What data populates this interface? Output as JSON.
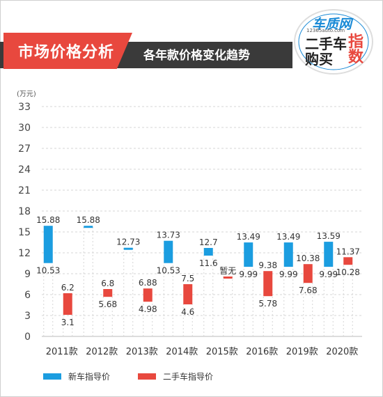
{
  "header": {
    "title": "市场价格分析",
    "subtitle": "各年款价格变化趋势",
    "logo_top": "车质网",
    "logo_url": "12365auto.com",
    "logo_line1": "二手车",
    "logo_line2": "购买",
    "logo_big1": "指",
    "logo_big2": "数"
  },
  "chart_data": {
    "type": "bar",
    "unit_label": "(万元)",
    "ylim": [
      0,
      33
    ],
    "yticks": [
      0,
      3,
      6,
      9,
      12,
      15,
      18,
      21,
      24,
      27,
      30,
      33
    ],
    "categories": [
      "2011款",
      "2012款",
      "2013款",
      "2014款",
      "2015款",
      "2016款",
      "2019款",
      "2020款"
    ],
    "series": [
      {
        "name": "新车指导价",
        "color": "#1b9de0",
        "high": [
          15.88,
          15.88,
          12.73,
          13.73,
          12.7,
          13.49,
          13.49,
          13.59
        ],
        "low": [
          10.53,
          15.88,
          12.73,
          10.53,
          11.6,
          9.99,
          9.99,
          9.99
        ],
        "high_labels": [
          "15.88",
          "15.88",
          "12.73",
          "13.73",
          "12.7",
          "13.49",
          "13.49",
          "13.59"
        ],
        "low_labels": [
          "10.53",
          "",
          "",
          "10.53",
          "11.6",
          "9.99",
          "9.99",
          "9.99"
        ]
      },
      {
        "name": "二手车指导价",
        "color": "#e8483e",
        "high": [
          6.2,
          6.8,
          6.88,
          7.5,
          8.6,
          9.38,
          10.38,
          11.37
        ],
        "low": [
          3.1,
          5.68,
          4.98,
          4.6,
          8.6,
          5.78,
          7.68,
          10.28
        ],
        "high_labels": [
          "6.2",
          "6.8",
          "6.88",
          "7.5",
          "暂无",
          "9.38",
          "10.38",
          "11.37"
        ],
        "low_labels": [
          "3.1",
          "5.68",
          "4.98",
          "4.6",
          "",
          "5.78",
          "7.68",
          "10.28"
        ]
      }
    ],
    "grid": true,
    "legend_position": "bottom"
  },
  "colors": {
    "header_red": "#e8483e",
    "header_dark": "#3a3a3a",
    "new_car": "#1b9de0",
    "used_car": "#e8483e"
  }
}
